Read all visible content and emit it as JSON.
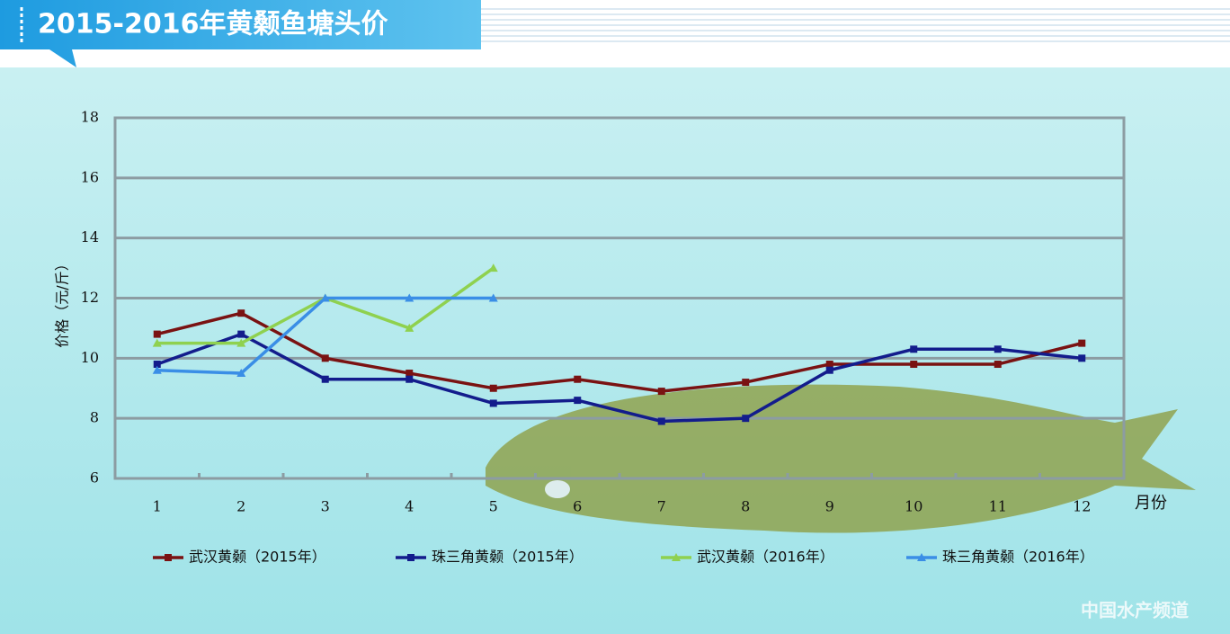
{
  "chart_data": {
    "type": "line",
    "title": "2015-2016年黄颡鱼塘头价",
    "y_label": "价格（元/斤）",
    "x_label": "月份",
    "watermark": "中国水产频道",
    "categories": [
      "1",
      "2",
      "3",
      "4",
      "5",
      "6",
      "7",
      "8",
      "9",
      "10",
      "11",
      "12"
    ],
    "ylim": [
      6,
      18
    ],
    "yticks": [
      6,
      8,
      10,
      12,
      14,
      16,
      18
    ],
    "grid": true,
    "series": [
      {
        "name": "武汉黄颡（2015年）",
        "color": "#7a1212",
        "marker": "square",
        "values": [
          10.8,
          11.5,
          10.0,
          9.5,
          9.0,
          9.3,
          8.9,
          9.2,
          9.8,
          9.8,
          9.8,
          10.5
        ]
      },
      {
        "name": "珠三角黄颡（2015年）",
        "color": "#131c8c",
        "marker": "square",
        "values": [
          9.8,
          10.8,
          9.3,
          9.3,
          8.5,
          8.6,
          7.9,
          8.0,
          9.6,
          10.3,
          10.3,
          10.0
        ]
      },
      {
        "name": "武汉黄颡（2016年）",
        "color": "#8fd14f",
        "marker": "triangle",
        "values": [
          10.5,
          10.5,
          12.0,
          11.0,
          13.0,
          null,
          null,
          null,
          null,
          null,
          null,
          null
        ]
      },
      {
        "name": "珠三角黄颡（2016年）",
        "color": "#3a8ee6",
        "marker": "triangle",
        "values": [
          9.6,
          9.5,
          12.0,
          12.0,
          12.0,
          null,
          null,
          null,
          null,
          null,
          null,
          null
        ]
      }
    ]
  }
}
